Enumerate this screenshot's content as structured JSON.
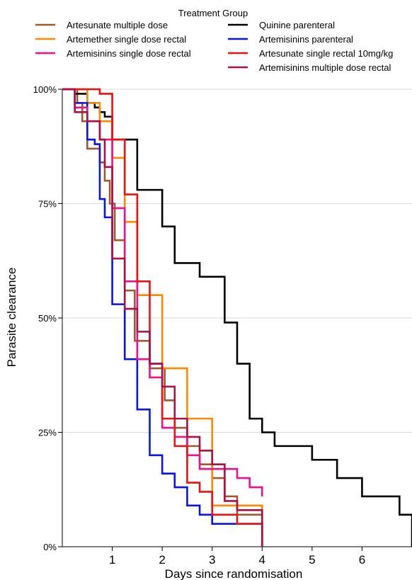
{
  "chart_data": {
    "type": "line",
    "step": true,
    "legend_title": "Treatment Group",
    "legend_position": "top",
    "xlabel": "Days since randomisation",
    "ylabel": "Parasite clearance",
    "xlim": [
      0,
      7
    ],
    "ylim": [
      0,
      1
    ],
    "xticks": [
      1,
      2,
      3,
      4,
      5,
      6
    ],
    "xtick_labels": [
      "1",
      "2",
      "3",
      "4",
      "5",
      "6"
    ],
    "yticks": [
      0,
      0.25,
      0.5,
      0.75,
      1.0
    ],
    "ytick_labels": [
      "0%",
      "25%",
      "50%",
      "75%",
      "100%"
    ],
    "grid": "horizontal",
    "series": [
      {
        "name": "Artesunate multiple dose",
        "color": "#9b5a32",
        "x": [
          0,
          0.3,
          0.4,
          0.5,
          0.75,
          0.85,
          0.95,
          1.05,
          1.25,
          1.45,
          1.75,
          2.05,
          2.25,
          2.5,
          2.75,
          3.0,
          3.25,
          3.5,
          4.0
        ],
        "y": [
          1.0,
          0.97,
          0.93,
          0.87,
          0.84,
          0.8,
          0.75,
          0.67,
          0.56,
          0.45,
          0.39,
          0.32,
          0.26,
          0.22,
          0.18,
          0.15,
          0.11,
          0.07,
          0.0
        ]
      },
      {
        "name": "Quinine parenteral",
        "color": "#000000",
        "x": [
          0,
          0.25,
          0.5,
          0.65,
          0.75,
          0.85,
          1.0,
          1.5,
          2.0,
          2.25,
          2.75,
          3.25,
          3.5,
          3.75,
          4.0,
          4.25,
          5.0,
          5.5,
          6.0,
          6.75,
          7.0
        ],
        "y": [
          1.0,
          0.99,
          0.97,
          0.96,
          0.95,
          0.94,
          0.89,
          0.78,
          0.7,
          0.62,
          0.59,
          0.49,
          0.4,
          0.28,
          0.25,
          0.22,
          0.19,
          0.15,
          0.11,
          0.07,
          0.0
        ]
      },
      {
        "name": "Artemether single dose rectal",
        "color": "#ff8800",
        "x": [
          0,
          0.25,
          0.5,
          0.75,
          1.0,
          1.25,
          1.5,
          2.0,
          2.5,
          3.0,
          4.0
        ],
        "y": [
          1.0,
          1.0,
          0.97,
          0.93,
          0.85,
          0.71,
          0.55,
          0.39,
          0.28,
          0.09,
          0.0
        ]
      },
      {
        "name": "Artemisinins parenteral",
        "color": "#0a14e6",
        "x": [
          0,
          0.25,
          0.5,
          0.65,
          0.75,
          0.85,
          1.0,
          1.25,
          1.5,
          1.75,
          2.0,
          2.25,
          2.5,
          2.75,
          3.0,
          4.0
        ],
        "y": [
          1.0,
          0.97,
          0.89,
          0.88,
          0.76,
          0.72,
          0.53,
          0.41,
          0.3,
          0.2,
          0.16,
          0.13,
          0.09,
          0.07,
          0.05,
          0.0
        ]
      },
      {
        "name": "Artemisinins single dose rectal",
        "color": "#ee1188",
        "x": [
          0,
          0.25,
          0.5,
          0.75,
          1.0,
          1.25,
          1.5,
          1.75,
          2.0,
          2.25,
          2.5,
          2.75,
          3.0,
          3.5,
          3.75,
          4.0
        ],
        "y": [
          1.0,
          0.96,
          0.93,
          0.89,
          0.74,
          0.58,
          0.41,
          0.37,
          0.26,
          0.24,
          0.2,
          0.17,
          0.17,
          0.15,
          0.13,
          0.11
        ]
      },
      {
        "name": "Artesunate single rectal 10mg/kg",
        "color": "#ee1111",
        "x": [
          0,
          0.25,
          0.5,
          0.75,
          1.0,
          1.25,
          1.5,
          1.75,
          2.0,
          2.25,
          2.5,
          2.75,
          3.0,
          3.25,
          3.5,
          4.0
        ],
        "y": [
          1.0,
          1.0,
          1.0,
          0.99,
          0.89,
          0.77,
          0.58,
          0.4,
          0.28,
          0.22,
          0.14,
          0.12,
          0.07,
          0.07,
          0.05,
          0.0
        ]
      },
      {
        "name": "Artemisinins multiple dose rectal",
        "color": "#aa1144",
        "x": [
          0,
          0.25,
          0.5,
          0.75,
          0.85,
          1.0,
          1.25,
          1.5,
          1.75,
          2.0,
          2.25,
          2.5,
          2.75,
          3.0,
          3.25,
          3.5,
          4.0
        ],
        "y": [
          1.0,
          0.95,
          0.93,
          0.89,
          0.83,
          0.63,
          0.52,
          0.47,
          0.4,
          0.35,
          0.28,
          0.24,
          0.21,
          0.18,
          0.1,
          0.08,
          0.0
        ]
      }
    ]
  }
}
